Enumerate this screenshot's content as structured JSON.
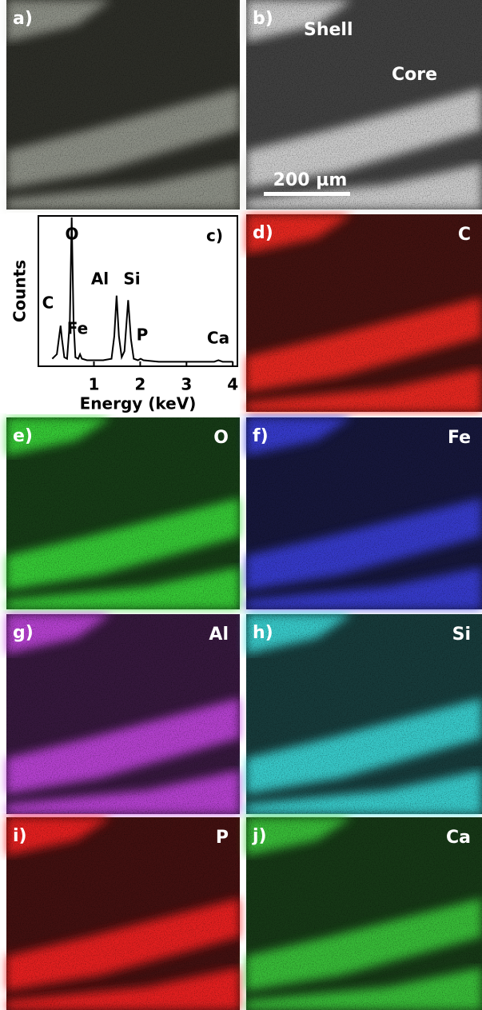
{
  "panels": [
    {
      "label": "a)",
      "color": "#d8dcd0"
    },
    {
      "label": "b)",
      "color": "#e0e0e0",
      "annotations": [
        "Shell",
        "Core"
      ],
      "scale_bar": "200 µm"
    },
    {
      "label": "d)",
      "element": "C",
      "color": "#ff2a20"
    },
    {
      "label": "e)",
      "element": "O",
      "color": "#3adf3a"
    },
    {
      "label": "f)",
      "element": "Fe",
      "color": "#3a40e0"
    },
    {
      "label": "g)",
      "element": "Al",
      "color": "#c846e6"
    },
    {
      "label": "h)",
      "element": "Si",
      "color": "#3ee0e0"
    },
    {
      "label": "i)",
      "element": "P",
      "color": "#ff2020"
    },
    {
      "label": "j)",
      "element": "Ca",
      "color": "#3cd03c"
    }
  ],
  "chart_data": {
    "type": "line",
    "panel_label": "c)",
    "x_label": "Energy (keV)",
    "y_label": "Counts",
    "color": "#000000",
    "x": [
      0.1,
      0.2,
      0.25,
      0.28,
      0.31,
      0.36,
      0.42,
      0.48,
      0.52,
      0.56,
      0.6,
      0.66,
      0.7,
      0.74,
      0.85,
      1.0,
      1.2,
      1.38,
      1.44,
      1.49,
      1.54,
      1.6,
      1.66,
      1.74,
      1.8,
      1.86,
      1.95,
      2.01,
      2.07,
      2.4,
      3.0,
      3.6,
      3.69,
      3.78,
      4.0
    ],
    "values": [
      5,
      8,
      20,
      27,
      18,
      6,
      5,
      30,
      99,
      30,
      6,
      5,
      8,
      5,
      4,
      4,
      4,
      5,
      20,
      47,
      20,
      6,
      10,
      44,
      18,
      5,
      4,
      5,
      4,
      3,
      3,
      3,
      4,
      3,
      3
    ],
    "annotations": [
      "O",
      "C",
      "Al",
      "Si",
      "Fe",
      "P",
      "Ca"
    ],
    "xlim": [
      -0.2,
      4.1
    ],
    "ylim": [
      0,
      100
    ],
    "xticks": [
      1,
      2,
      3,
      4
    ]
  }
}
